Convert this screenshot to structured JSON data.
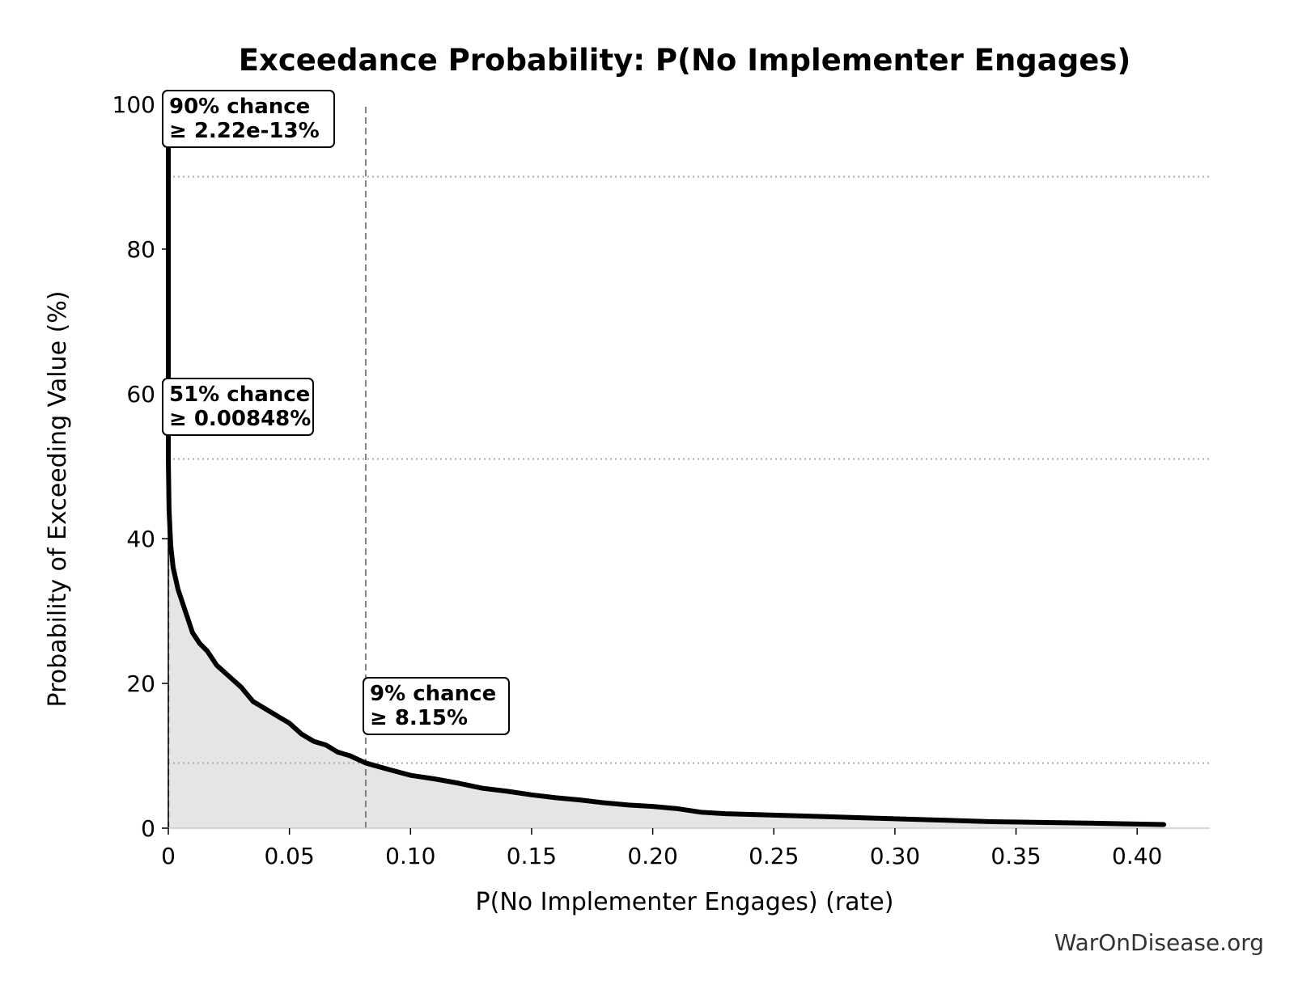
{
  "chart_data": {
    "type": "area",
    "title": "Exceedance Probability: P(No Implementer Engages)",
    "xlabel": "P(No Implementer Engages) (rate)",
    "ylabel": "Probability of Exceeding Value (%)",
    "xlim": [
      0,
      0.43
    ],
    "ylim": [
      0,
      100
    ],
    "x_ticks": [
      0,
      0.05,
      0.1,
      0.15,
      0.2,
      0.25,
      0.3,
      0.35,
      0.4
    ],
    "x_tick_labels": [
      "0",
      "0.05",
      "0.10",
      "0.15",
      "0.20",
      "0.25",
      "0.30",
      "0.35",
      "0.40"
    ],
    "y_ticks": [
      0,
      20,
      40,
      60,
      80,
      100
    ],
    "y_tick_labels": [
      "0",
      "20",
      "40",
      "60",
      "80",
      "100"
    ],
    "grid": false,
    "series": [
      {
        "x": [
          0,
          0,
          0.0003,
          0.001,
          0.002,
          0.004,
          0.006,
          0.008,
          0.01,
          0.013,
          0.016,
          0.02,
          0.025,
          0.03,
          0.035,
          0.04,
          0.045,
          0.05,
          0.055,
          0.06,
          0.065,
          0.07,
          0.075,
          0.0815,
          0.09,
          0.1,
          0.11,
          0.12,
          0.13,
          0.14,
          0.15,
          0.16,
          0.17,
          0.18,
          0.19,
          0.2,
          0.21,
          0.22,
          0.23,
          0.25,
          0.27,
          0.29,
          0.3,
          0.32,
          0.34,
          0.36,
          0.38,
          0.395,
          0.411
        ],
        "y": [
          100,
          51,
          44,
          39,
          36,
          33,
          31,
          29,
          27,
          25.5,
          24.5,
          22.5,
          21,
          19.5,
          17.5,
          16.5,
          15.5,
          14.5,
          13,
          12,
          11.5,
          10.5,
          10,
          9,
          8.2,
          7.3,
          6.8,
          6.2,
          5.5,
          5.1,
          4.6,
          4.2,
          3.9,
          3.5,
          3.2,
          3.0,
          2.7,
          2.2,
          2.0,
          1.8,
          1.6,
          1.4,
          1.3,
          1.1,
          0.9,
          0.8,
          0.7,
          0.6,
          0.5
        ]
      }
    ],
    "colors": {
      "line": "#000000",
      "fill": "#e5e5e5",
      "threshold": "#aaaaaa",
      "marker_line": "#808080"
    },
    "thresholds": [
      {
        "y": 90,
        "x": 0,
        "label_line1": "90% chance",
        "label_line2": "≥ 2.22e-13%"
      },
      {
        "y": 51,
        "x": 8.48e-05,
        "label_line1": "51% chance",
        "label_line2": "≥ 0.00848%"
      },
      {
        "y": 9,
        "x": 0.0815,
        "label_line1": "9% chance",
        "label_line2": "≥ 8.15%"
      }
    ]
  },
  "source": "WarOnDisease.org"
}
